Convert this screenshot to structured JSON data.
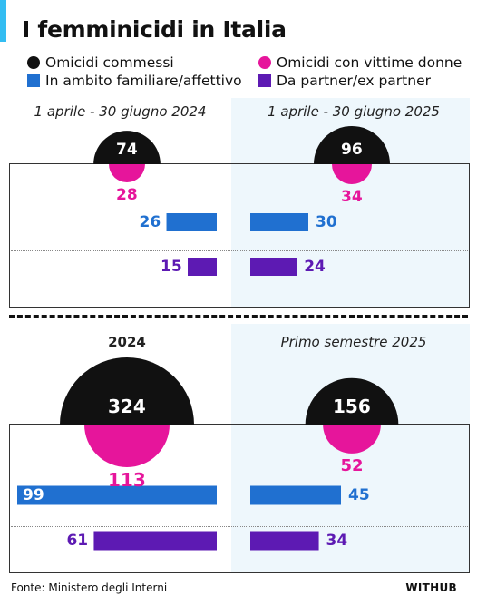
{
  "title": "I femminicidi in Italia",
  "legend": [
    {
      "label": "Omicidi commessi",
      "color": "#111111",
      "shape": "circle"
    },
    {
      "label": "Omicidi con vittime donne",
      "color": "#e6159b",
      "shape": "circle"
    },
    {
      "label": "In ambito familiare/affettivo",
      "color": "#2070d0",
      "shape": "square"
    },
    {
      "label": "Da partner/ex partner",
      "color": "#5d1ab3",
      "shape": "square"
    }
  ],
  "colors": {
    "total": "#111111",
    "women": "#e6159b",
    "family": "#2070d0",
    "partner": "#5d1ab3",
    "accent": "#33bdf2",
    "panel": "#eef7fc"
  },
  "footer": {
    "source": "Fonte: Ministero degli Interni",
    "brand": "WITHUB"
  },
  "chart_data": [
    {
      "type": "bar",
      "periods": [
        "1 aprile - 30 giugno 2024",
        "1 aprile - 30 giugno 2025"
      ],
      "series": [
        {
          "name": "Omicidi commessi",
          "values": [
            74,
            96
          ]
        },
        {
          "name": "Omicidi con vittime donne",
          "values": [
            28,
            34
          ]
        },
        {
          "name": "In ambito familiare/affettivo",
          "values": [
            26,
            30
          ]
        },
        {
          "name": "Da partner/ex partner",
          "values": [
            15,
            24
          ]
        }
      ]
    },
    {
      "type": "bar",
      "periods": [
        "2024",
        "Primo semestre 2025"
      ],
      "series": [
        {
          "name": "Omicidi commessi",
          "values": [
            324,
            156
          ]
        },
        {
          "name": "Omicidi con vittime donne",
          "values": [
            113,
            52
          ]
        },
        {
          "name": "In ambito familiare/affettivo",
          "values": [
            99,
            45
          ]
        },
        {
          "name": "Da partner/ex partner",
          "values": [
            61,
            34
          ]
        }
      ]
    }
  ]
}
